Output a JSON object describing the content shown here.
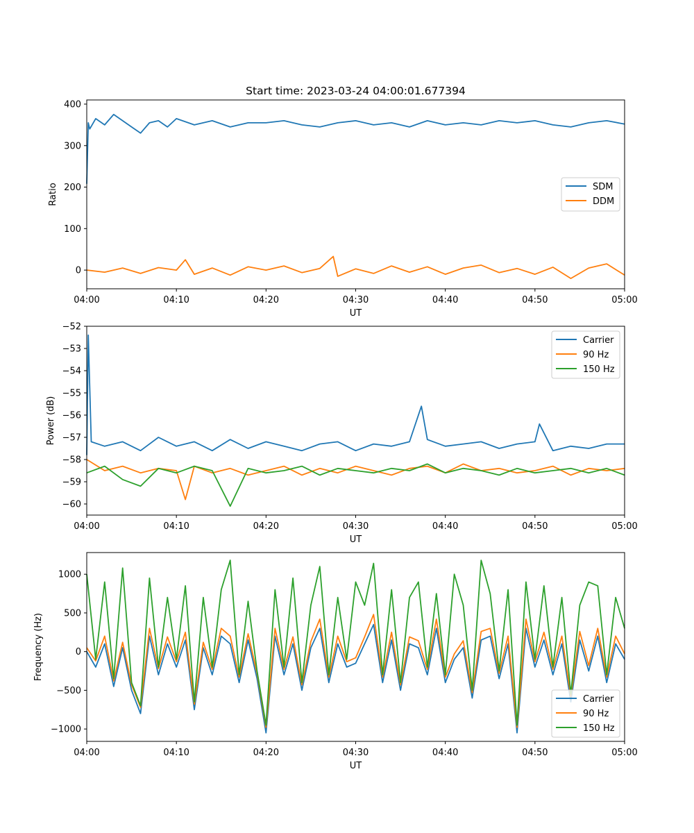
{
  "figure": {
    "title": "Start time: 2023-03-24 04:00:01.677394"
  },
  "chart_data": [
    {
      "type": "line",
      "title": "Start time: 2023-03-24 04:00:01.677394",
      "xlabel": "UT",
      "ylabel": "Ratio",
      "xlim": [
        "04:00",
        "05:00"
      ],
      "ylim": [
        -45,
        410
      ],
      "x_ticks": [
        "04:00",
        "04:10",
        "04:20",
        "04:30",
        "04:40",
        "04:50",
        "05:00"
      ],
      "y_ticks": [
        "0",
        "100",
        "200",
        "300",
        "400"
      ],
      "y_tick_values": [
        0,
        100,
        200,
        300,
        400
      ],
      "grid": false,
      "legend_position": "center-right",
      "series": [
        {
          "name": "SDM",
          "color": "#1f77b4",
          "x": [
            "04:00",
            "04:00:10",
            "04:00:20",
            "04:01",
            "04:02",
            "04:03",
            "04:04",
            "04:05",
            "04:06",
            "04:07",
            "04:08",
            "04:09",
            "04:10",
            "04:12",
            "04:14",
            "04:16",
            "04:18",
            "04:20",
            "04:22",
            "04:24",
            "04:26",
            "04:28",
            "04:30",
            "04:32",
            "04:34",
            "04:36",
            "04:38",
            "04:40",
            "04:42",
            "04:44",
            "04:46",
            "04:48",
            "04:50",
            "04:52",
            "04:54",
            "04:56",
            "04:58",
            "05:00"
          ],
          "values": [
            208,
            355,
            340,
            365,
            350,
            375,
            360,
            345,
            330,
            355,
            360,
            345,
            365,
            350,
            360,
            345,
            355,
            355,
            360,
            350,
            345,
            355,
            360,
            350,
            355,
            345,
            360,
            350,
            355,
            350,
            360,
            355,
            360,
            350,
            345,
            355,
            360,
            352
          ]
        },
        {
          "name": "DDM",
          "color": "#ff7f0e",
          "x": [
            "04:00",
            "04:02",
            "04:04",
            "04:06",
            "04:08",
            "04:10",
            "04:11",
            "04:12",
            "04:14",
            "04:16",
            "04:18",
            "04:20",
            "04:22",
            "04:24",
            "04:26",
            "04:27:30",
            "04:28",
            "04:30",
            "04:32",
            "04:34",
            "04:36",
            "04:38",
            "04:40",
            "04:42",
            "04:44",
            "04:46",
            "04:48",
            "04:50",
            "04:52",
            "04:54",
            "04:56",
            "04:58",
            "05:00"
          ],
          "values": [
            0,
            -5,
            5,
            -8,
            6,
            0,
            25,
            -10,
            5,
            -12,
            8,
            0,
            10,
            -6,
            4,
            33,
            -15,
            3,
            -8,
            10,
            -5,
            8,
            -10,
            5,
            12,
            -6,
            4,
            -10,
            7,
            -20,
            5,
            15,
            -12
          ]
        }
      ]
    },
    {
      "type": "line",
      "xlabel": "UT",
      "ylabel": "Power (dB)",
      "xlim": [
        "04:00",
        "05:00"
      ],
      "ylim": [
        -60.5,
        -52
      ],
      "x_ticks": [
        "04:00",
        "04:10",
        "04:20",
        "04:30",
        "04:40",
        "04:50",
        "05:00"
      ],
      "y_ticks": [
        "−60",
        "−59",
        "−58",
        "−57",
        "−56",
        "−55",
        "−54",
        "−53",
        "−52"
      ],
      "y_tick_values": [
        -60,
        -59,
        -58,
        -57,
        -56,
        -55,
        -54,
        -53,
        -52
      ],
      "grid": false,
      "legend_position": "top-right",
      "series": [
        {
          "name": "Carrier",
          "color": "#1f77b4",
          "x": [
            "04:00",
            "04:00:10",
            "04:00:30",
            "04:02",
            "04:04",
            "04:06",
            "04:08",
            "04:10",
            "04:12",
            "04:14",
            "04:16",
            "04:18",
            "04:20",
            "04:22",
            "04:24",
            "04:26",
            "04:28",
            "04:30",
            "04:32",
            "04:34",
            "04:36",
            "04:37:20",
            "04:38",
            "04:40",
            "04:42",
            "04:44",
            "04:46",
            "04:48",
            "04:50",
            "04:50:30",
            "04:52",
            "04:54",
            "04:56",
            "04:58",
            "05:00"
          ],
          "values": [
            -57.8,
            -52.4,
            -57.2,
            -57.4,
            -57.2,
            -57.6,
            -57.0,
            -57.4,
            -57.2,
            -57.6,
            -57.1,
            -57.5,
            -57.2,
            -57.4,
            -57.6,
            -57.3,
            -57.2,
            -57.6,
            -57.3,
            -57.4,
            -57.2,
            -55.6,
            -57.1,
            -57.4,
            -57.3,
            -57.2,
            -57.5,
            -57.3,
            -57.2,
            -56.4,
            -57.6,
            -57.4,
            -57.5,
            -57.3,
            -57.3
          ]
        },
        {
          "name": "90 Hz",
          "color": "#ff7f0e",
          "x": [
            "04:00",
            "04:02",
            "04:04",
            "04:06",
            "04:08",
            "04:10",
            "04:11",
            "04:12",
            "04:14",
            "04:16",
            "04:18",
            "04:20",
            "04:22",
            "04:24",
            "04:26",
            "04:28",
            "04:30",
            "04:32",
            "04:34",
            "04:36",
            "04:38",
            "04:40",
            "04:42",
            "04:44",
            "04:46",
            "04:48",
            "04:50",
            "04:52",
            "04:54",
            "04:56",
            "04:58",
            "05:00"
          ],
          "values": [
            -58.0,
            -58.5,
            -58.3,
            -58.6,
            -58.4,
            -58.5,
            -59.8,
            -58.3,
            -58.6,
            -58.4,
            -58.7,
            -58.5,
            -58.3,
            -58.7,
            -58.4,
            -58.6,
            -58.3,
            -58.5,
            -58.7,
            -58.4,
            -58.3,
            -58.6,
            -58.2,
            -58.5,
            -58.4,
            -58.6,
            -58.5,
            -58.3,
            -58.7,
            -58.4,
            -58.5,
            -58.4
          ]
        },
        {
          "name": "150 Hz",
          "color": "#2ca02c",
          "x": [
            "04:00",
            "04:02",
            "04:04",
            "04:06",
            "04:08",
            "04:10",
            "04:12",
            "04:14",
            "04:16",
            "04:18",
            "04:20",
            "04:22",
            "04:24",
            "04:26",
            "04:28",
            "04:30",
            "04:32",
            "04:34",
            "04:36",
            "04:38",
            "04:40",
            "04:42",
            "04:44",
            "04:46",
            "04:48",
            "04:50",
            "04:52",
            "04:54",
            "04:56",
            "04:58",
            "05:00"
          ],
          "values": [
            -58.6,
            -58.3,
            -58.9,
            -59.2,
            -58.4,
            -58.6,
            -58.3,
            -58.5,
            -60.1,
            -58.4,
            -58.6,
            -58.5,
            -58.3,
            -58.7,
            -58.4,
            -58.5,
            -58.6,
            -58.4,
            -58.5,
            -58.2,
            -58.6,
            -58.4,
            -58.5,
            -58.7,
            -58.4,
            -58.6,
            -58.5,
            -58.4,
            -58.6,
            -58.4,
            -58.7
          ]
        }
      ]
    },
    {
      "type": "line",
      "xlabel": "UT",
      "ylabel": "Frequency (Hz)",
      "xlim": [
        "04:00",
        "05:00"
      ],
      "ylim": [
        -1160,
        1280
      ],
      "x_ticks": [
        "04:00",
        "04:10",
        "04:20",
        "04:30",
        "04:40",
        "04:50",
        "05:00"
      ],
      "y_ticks": [
        "−1000",
        "−500",
        "0",
        "500",
        "1000"
      ],
      "y_tick_values": [
        -1000,
        -500,
        0,
        500,
        1000
      ],
      "grid": false,
      "legend_position": "bottom-right",
      "series": [
        {
          "name": "Carrier",
          "color": "#1f77b4",
          "x": [
            "04:00",
            "04:01",
            "04:02",
            "04:03",
            "04:04",
            "04:05",
            "04:06",
            "04:07",
            "04:08",
            "04:09",
            "04:10",
            "04:11",
            "04:12",
            "04:13",
            "04:14",
            "04:15",
            "04:16",
            "04:17",
            "04:18",
            "04:19",
            "04:20",
            "04:21",
            "04:22",
            "04:23",
            "04:24",
            "04:25",
            "04:26",
            "04:27",
            "04:28",
            "04:29",
            "04:30",
            "04:31",
            "04:32",
            "04:33",
            "04:34",
            "04:35",
            "04:36",
            "04:37",
            "04:38",
            "04:39",
            "04:40",
            "04:41",
            "04:42",
            "04:43",
            "04:44",
            "04:45",
            "04:46",
            "04:47",
            "04:48",
            "04:49",
            "04:50",
            "04:51",
            "04:52",
            "04:53",
            "04:54",
            "04:55",
            "04:56",
            "04:57",
            "04:58",
            "04:59",
            "05:00"
          ],
          "values": [
            0,
            -200,
            100,
            -450,
            50,
            -500,
            -800,
            200,
            -300,
            100,
            -200,
            150,
            -750,
            50,
            -300,
            200,
            100,
            -400,
            150,
            -350,
            -1050,
            200,
            -300,
            100,
            -500,
            50,
            300,
            -400,
            100,
            -200,
            -150,
            100,
            350,
            -400,
            150,
            -500,
            100,
            50,
            -300,
            300,
            -400,
            -100,
            50,
            -600,
            150,
            200,
            -350,
            100,
            -1050,
            300,
            -200,
            150,
            -300,
            100,
            -650,
            150,
            -250,
            200,
            -400,
            100,
            -100
          ]
        },
        {
          "name": "90 Hz",
          "color": "#ff7f0e",
          "x": [
            "04:00",
            "04:01",
            "04:02",
            "04:03",
            "04:04",
            "04:05",
            "04:06",
            "04:07",
            "04:08",
            "04:09",
            "04:10",
            "04:11",
            "04:12",
            "04:13",
            "04:14",
            "04:15",
            "04:16",
            "04:17",
            "04:18",
            "04:19",
            "04:20",
            "04:21",
            "04:22",
            "04:23",
            "04:24",
            "04:25",
            "04:26",
            "04:27",
            "04:28",
            "04:29",
            "04:30",
            "04:31",
            "04:32",
            "04:33",
            "04:34",
            "04:35",
            "04:36",
            "04:37",
            "04:38",
            "04:39",
            "04:40",
            "04:41",
            "04:42",
            "04:43",
            "04:44",
            "04:45",
            "04:46",
            "04:47",
            "04:48",
            "04:49",
            "04:50",
            "04:51",
            "04:52",
            "04:53",
            "04:54",
            "04:55",
            "04:56",
            "04:57",
            "04:58",
            "04:59",
            "05:00"
          ],
          "values": [
            50,
            -120,
            200,
            -380,
            120,
            -430,
            -720,
            300,
            -220,
            190,
            -130,
            250,
            -680,
            120,
            -230,
            300,
            200,
            -330,
            230,
            -280,
            -980,
            300,
            -230,
            190,
            -430,
            130,
            420,
            -330,
            200,
            -130,
            -80,
            190,
            480,
            -330,
            250,
            -430,
            190,
            140,
            -230,
            420,
            -330,
            -30,
            140,
            -530,
            260,
            300,
            -280,
            200,
            -980,
            420,
            -130,
            250,
            -230,
            200,
            -580,
            260,
            -180,
            300,
            -330,
            200,
            -30
          ]
        },
        {
          "name": "150 Hz",
          "color": "#2ca02c",
          "x": [
            "04:00",
            "04:01",
            "04:02",
            "04:03",
            "04:04",
            "04:05",
            "04:06",
            "04:07",
            "04:08",
            "04:09",
            "04:10",
            "04:11",
            "04:12",
            "04:13",
            "04:14",
            "04:15",
            "04:16",
            "04:17",
            "04:18",
            "04:19",
            "04:20",
            "04:21",
            "04:22",
            "04:23",
            "04:24",
            "04:25",
            "04:26",
            "04:27",
            "04:28",
            "04:29",
            "04:30",
            "04:31",
            "04:32",
            "04:33",
            "04:34",
            "04:35",
            "04:36",
            "04:37",
            "04:38",
            "04:39",
            "04:40",
            "04:41",
            "04:42",
            "04:43",
            "04:44",
            "04:45",
            "04:46",
            "04:47",
            "04:48",
            "04:49",
            "04:50",
            "04:51",
            "04:52",
            "04:53",
            "04:54",
            "04:55",
            "04:56",
            "04:57",
            "04:58",
            "04:59",
            "05:00"
          ],
          "values": [
            1000,
            -100,
            900,
            -350,
            1080,
            -400,
            -700,
            950,
            -200,
            700,
            -100,
            850,
            -650,
            700,
            -200,
            800,
            1180,
            -300,
            650,
            -250,
            -950,
            800,
            -200,
            950,
            -400,
            600,
            1100,
            -300,
            700,
            -100,
            900,
            600,
            1140,
            -300,
            800,
            -400,
            700,
            900,
            -200,
            750,
            -300,
            1000,
            600,
            -500,
            1180,
            750,
            -250,
            800,
            -950,
            900,
            -100,
            850,
            -200,
            700,
            -550,
            600,
            900,
            850,
            -300,
            700,
            300
          ]
        }
      ]
    }
  ]
}
